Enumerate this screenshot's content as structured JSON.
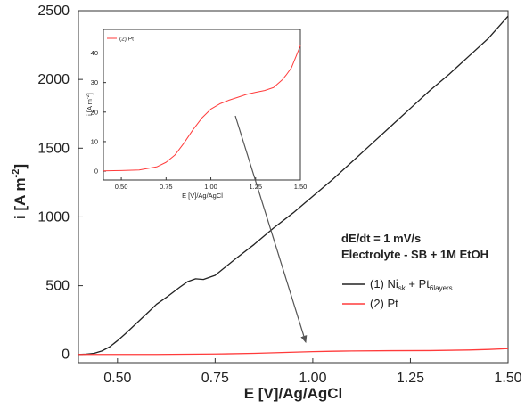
{
  "chart_data": [
    {
      "type": "line",
      "xlabel": "E [V]/Ag/AgCl",
      "ylabel": "i [A m",
      "ylabel_sup": "-2",
      "ylabel_close": "]",
      "xlim": [
        0.4,
        1.5
      ],
      "ylim": [
        -60,
        2500
      ],
      "xticks": [
        "0.50",
        "0.75",
        "1.00",
        "1.25",
        "1.50"
      ],
      "yticks": [
        "0",
        "500",
        "1000",
        "1500",
        "2000",
        "2500"
      ],
      "grid": false,
      "legend_position": "right",
      "annotations": [
        "dE/dt = 1 mV/s",
        "Electrolyte - SB + 1M EtOH"
      ],
      "legend_entries": [
        {
          "prefix": "(1) Ni",
          "sub1": "sk",
          "mid": " + Pt",
          "sub2": "6layers",
          "color": "#222222"
        },
        {
          "prefix": "(2) Pt",
          "color": "#ff3b3b"
        }
      ],
      "series": [
        {
          "color": "#222222",
          "x": [
            0.4,
            0.42,
            0.44,
            0.46,
            0.48,
            0.5,
            0.52,
            0.55,
            0.58,
            0.6,
            0.63,
            0.66,
            0.68,
            0.7,
            0.72,
            0.75,
            0.8,
            0.85,
            0.9,
            0.95,
            1.0,
            1.05,
            1.1,
            1.15,
            1.2,
            1.25,
            1.3,
            1.35,
            1.4,
            1.45,
            1.5
          ],
          "y": [
            0,
            2,
            8,
            25,
            55,
            100,
            150,
            230,
            310,
            365,
            425,
            490,
            530,
            550,
            545,
            575,
            690,
            800,
            920,
            1030,
            1150,
            1270,
            1400,
            1530,
            1660,
            1790,
            1920,
            2040,
            2170,
            2300,
            2460
          ]
        },
        {
          "color": "#ff3b3b",
          "x": [
            0.4,
            0.5,
            0.6,
            0.75,
            0.85,
            0.95,
            1.0,
            1.05,
            1.1,
            1.2,
            1.3,
            1.4,
            1.45,
            1.5
          ],
          "y": [
            0,
            0,
            0,
            3,
            8,
            16,
            20,
            23,
            25,
            27,
            28,
            32,
            36,
            42
          ]
        }
      ]
    },
    {
      "type": "line",
      "xlabel": "E [V]/Ag/AgCl",
      "ylabel": "i [A m",
      "ylabel_sup": "-2",
      "ylabel_close": "]",
      "xlim": [
        0.4,
        1.5
      ],
      "ylim": [
        -3,
        48
      ],
      "xticks": [
        "0.50",
        "0.75",
        "1.00",
        "1.25",
        "1.50"
      ],
      "yticks": [
        "0",
        "10",
        "20",
        "30",
        "40"
      ],
      "legend_entries": [
        {
          "prefix": "(2) Pt",
          "color": "#ff3b3b"
        }
      ],
      "series": [
        {
          "color": "#ff3b3b",
          "x": [
            0.4,
            0.5,
            0.6,
            0.7,
            0.75,
            0.8,
            0.85,
            0.9,
            0.95,
            1.0,
            1.05,
            1.1,
            1.15,
            1.2,
            1.25,
            1.3,
            1.35,
            1.4,
            1.42,
            1.45,
            1.48,
            1.5
          ],
          "y": [
            0.1,
            0.2,
            0.4,
            1.5,
            3,
            5.5,
            9.5,
            14,
            18,
            21,
            22.8,
            24,
            25,
            26,
            26.7,
            27.3,
            28.3,
            31,
            32.5,
            35,
            39.5,
            42.5
          ]
        }
      ]
    }
  ]
}
